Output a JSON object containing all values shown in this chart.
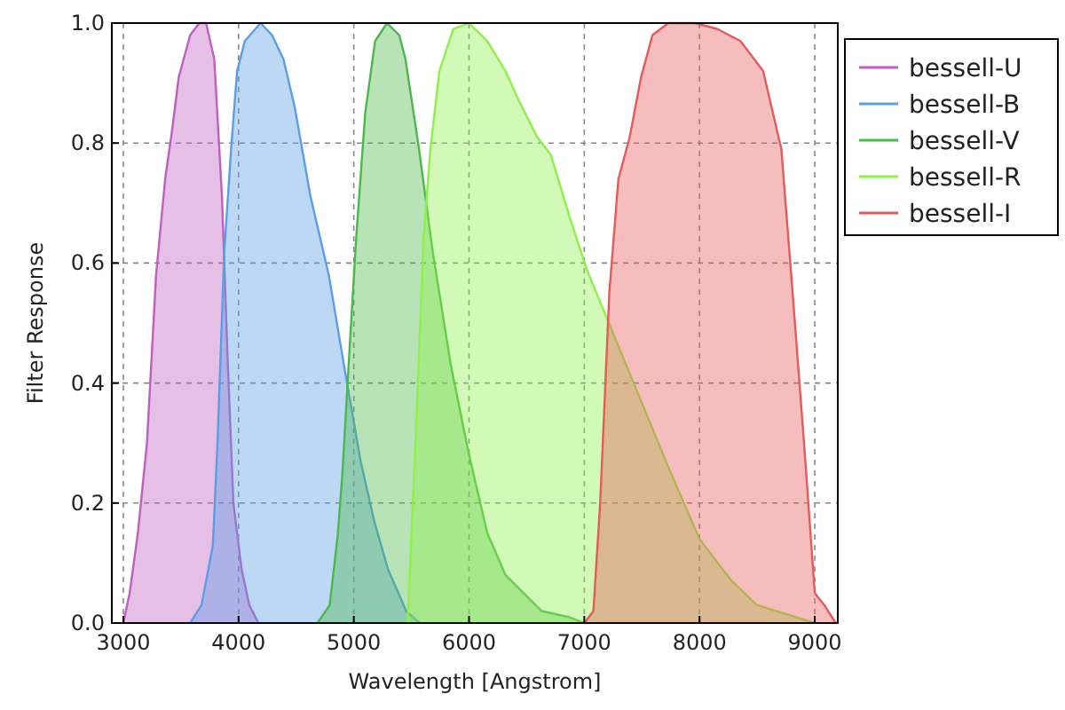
{
  "chart_data": {
    "type": "area",
    "xlabel": "Wavelength [Angstrom]",
    "ylabel": "Filter Response",
    "xlim": [
      2900,
      9200
    ],
    "ylim": [
      0,
      1
    ],
    "xticks": [
      3000,
      4000,
      5000,
      6000,
      7000,
      8000,
      9000
    ],
    "yticks": [
      {
        "value": 0,
        "label": "0.0"
      },
      {
        "value": 0.2,
        "label": "0.2"
      },
      {
        "value": 0.4,
        "label": "0.4"
      },
      {
        "value": 0.6,
        "label": "0.6"
      },
      {
        "value": 0.8,
        "label": "0.8"
      },
      {
        "value": 1,
        "label": "1.0"
      }
    ],
    "grid": true,
    "legend": "right",
    "line_style": "solid",
    "marker": "none",
    "series": [
      {
        "name": "bessell-U",
        "color": "#bf5fbf",
        "x": [
          3000,
          3055,
          3126,
          3205,
          3284,
          3363,
          3422,
          3481,
          3580,
          3659,
          3718,
          3789,
          3856,
          3903,
          3955,
          4026,
          4093,
          4172
        ],
        "values": [
          0,
          0.05,
          0.15,
          0.3,
          0.58,
          0.74,
          0.82,
          0.91,
          0.98,
          1.0,
          1.0,
          0.94,
          0.71,
          0.45,
          0.2,
          0.09,
          0.03,
          0
        ]
      },
      {
        "name": "bessell-B",
        "color": "#5b9ee6",
        "x": [
          3580,
          3679,
          3777,
          3817,
          3876,
          3935,
          3987,
          4054,
          4191,
          4290,
          4389,
          4487,
          4625,
          4783,
          4941,
          5059,
          5177,
          5296,
          5454,
          5572
        ],
        "values": [
          0,
          0.03,
          0.13,
          0.3,
          0.62,
          0.79,
          0.92,
          0.97,
          1.0,
          0.98,
          0.94,
          0.86,
          0.71,
          0.58,
          0.4,
          0.27,
          0.17,
          0.09,
          0.02,
          0
        ]
      },
      {
        "name": "bessell-V",
        "color": "#4cb84c",
        "x": [
          4685,
          4791,
          4862,
          4901,
          4961,
          5020,
          5099,
          5185,
          5288,
          5394,
          5448,
          5566,
          5684,
          5842,
          6000,
          6158,
          6316,
          6473,
          6631,
          6862,
          7000
        ],
        "values": [
          0,
          0.03,
          0.15,
          0.25,
          0.45,
          0.64,
          0.85,
          0.97,
          1.0,
          0.98,
          0.94,
          0.79,
          0.62,
          0.43,
          0.28,
          0.15,
          0.08,
          0.05,
          0.02,
          0.01,
          0
        ]
      },
      {
        "name": "bessell-R",
        "color": "#8ef04a",
        "x": [
          5467,
          5546,
          5605,
          5664,
          5743,
          5862,
          6000,
          6158,
          6316,
          6434,
          6592,
          6710,
          6868,
          7020,
          7256,
          7493,
          7729,
          8000,
          8280,
          8497,
          9000
        ],
        "values": [
          0,
          0.35,
          0.64,
          0.79,
          0.92,
          0.99,
          1.0,
          0.97,
          0.92,
          0.87,
          0.81,
          0.78,
          0.68,
          0.59,
          0.48,
          0.37,
          0.26,
          0.14,
          0.07,
          0.03,
          0
        ]
      },
      {
        "name": "bessell-I",
        "color": "#e55a5a",
        "x": [
          7000,
          7079,
          7138,
          7217,
          7296,
          7394,
          7493,
          7592,
          7730,
          7960,
          8157,
          8355,
          8552,
          8710,
          8808,
          8907,
          9000,
          9083,
          9182
        ],
        "values": [
          0,
          0.02,
          0.2,
          0.55,
          0.74,
          0.81,
          0.91,
          0.98,
          1.0,
          1.0,
          0.99,
          0.97,
          0.92,
          0.79,
          0.55,
          0.3,
          0.05,
          0.03,
          0
        ]
      }
    ]
  }
}
